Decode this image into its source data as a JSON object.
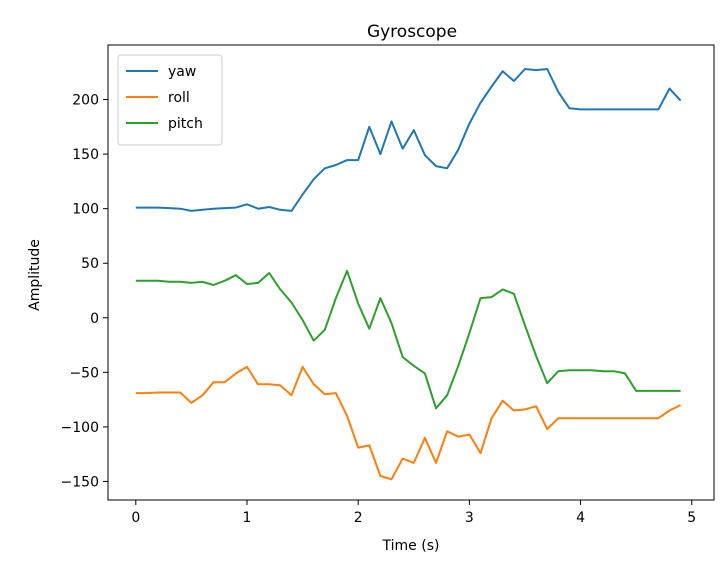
{
  "chart_data": {
    "type": "line",
    "title": "Gyroscope",
    "xlabel": "Time (s)",
    "ylabel": "Amplitude",
    "xlim": [
      -0.25,
      5.2
    ],
    "ylim": [
      -167,
      250
    ],
    "xticks": [
      0,
      1,
      2,
      3,
      4,
      5
    ],
    "yticks": [
      -150,
      -100,
      -50,
      0,
      50,
      100,
      150,
      200
    ],
    "grid": false,
    "legend_position": "top-left",
    "series": [
      {
        "name": "yaw",
        "color": "#1f77b4",
        "x": [
          0.0,
          0.1,
          0.2,
          0.3,
          0.4,
          0.5,
          0.6,
          0.7,
          0.8,
          0.9,
          1.0,
          1.1,
          1.2,
          1.3,
          1.4,
          1.5,
          1.6,
          1.7,
          1.8,
          1.9,
          2.0,
          2.1,
          2.2,
          2.3,
          2.4,
          2.5,
          2.6,
          2.7,
          2.8,
          2.9,
          3.0,
          3.1,
          3.2,
          3.3,
          3.4,
          3.5,
          3.6,
          3.7,
          3.8,
          3.9,
          4.0,
          4.1,
          4.2,
          4.3,
          4.4,
          4.5,
          4.6,
          4.7,
          4.8,
          4.9
        ],
        "y": [
          101,
          101,
          101,
          100.5,
          100,
          98,
          99,
          100,
          100.5,
          101,
          104,
          100,
          101.5,
          99,
          98,
          113,
          127,
          137,
          140,
          144.5,
          144.5,
          175,
          150,
          180,
          155,
          172,
          149,
          139,
          137,
          154,
          178,
          197,
          212,
          226,
          217,
          228,
          227,
          228,
          207,
          192,
          191,
          191,
          191,
          191,
          191,
          191,
          191,
          191,
          210,
          199
        ]
      },
      {
        "name": "roll",
        "color": "#ff7f0e",
        "x": [
          0.0,
          0.1,
          0.2,
          0.3,
          0.4,
          0.5,
          0.6,
          0.7,
          0.8,
          0.9,
          1.0,
          1.1,
          1.2,
          1.3,
          1.4,
          1.5,
          1.6,
          1.7,
          1.8,
          1.9,
          2.0,
          2.1,
          2.2,
          2.3,
          2.4,
          2.5,
          2.6,
          2.7,
          2.8,
          2.9,
          3.0,
          3.1,
          3.2,
          3.3,
          3.4,
          3.5,
          3.6,
          3.7,
          3.8,
          3.9,
          4.0,
          4.1,
          4.2,
          4.3,
          4.4,
          4.5,
          4.6,
          4.7,
          4.8,
          4.9
        ],
        "y": [
          -69,
          -69,
          -68.5,
          -68.5,
          -68.5,
          -78,
          -71,
          -59,
          -59,
          -51,
          -45,
          -61,
          -61,
          -62,
          -71,
          -45,
          -61,
          -70,
          -69,
          -90,
          -119,
          -117,
          -145,
          -148,
          -129,
          -133,
          -110,
          -133,
          -104,
          -109,
          -107,
          -124,
          -92,
          -76,
          -85,
          -84,
          -81,
          -102,
          -92,
          -92,
          -92,
          -92,
          -92,
          -92,
          -92,
          -92,
          -92,
          -92,
          -85,
          -80
        ]
      },
      {
        "name": "pitch",
        "color": "#2ca02c",
        "x": [
          0.0,
          0.1,
          0.2,
          0.3,
          0.4,
          0.5,
          0.6,
          0.7,
          0.8,
          0.9,
          1.0,
          1.1,
          1.2,
          1.3,
          1.4,
          1.5,
          1.6,
          1.7,
          1.8,
          1.9,
          2.0,
          2.1,
          2.2,
          2.3,
          2.4,
          2.5,
          2.6,
          2.7,
          2.8,
          2.9,
          3.0,
          3.1,
          3.2,
          3.3,
          3.4,
          3.5,
          3.6,
          3.7,
          3.8,
          3.9,
          4.0,
          4.1,
          4.2,
          4.3,
          4.4,
          4.5,
          4.6,
          4.7,
          4.8,
          4.9
        ],
        "y": [
          34,
          34,
          34,
          33,
          33,
          32,
          33,
          30,
          34,
          39,
          31,
          32,
          41,
          26,
          14,
          -2,
          -21,
          -11,
          18,
          43,
          13,
          -10,
          18,
          -5,
          -36,
          -44,
          -51,
          -83,
          -71,
          -44,
          -14,
          18,
          19,
          26,
          22,
          -7,
          -35,
          -60,
          -49,
          -48,
          -48,
          -48,
          -49,
          -49,
          -51,
          -67,
          -67,
          -67,
          -67,
          -67
        ]
      }
    ]
  }
}
